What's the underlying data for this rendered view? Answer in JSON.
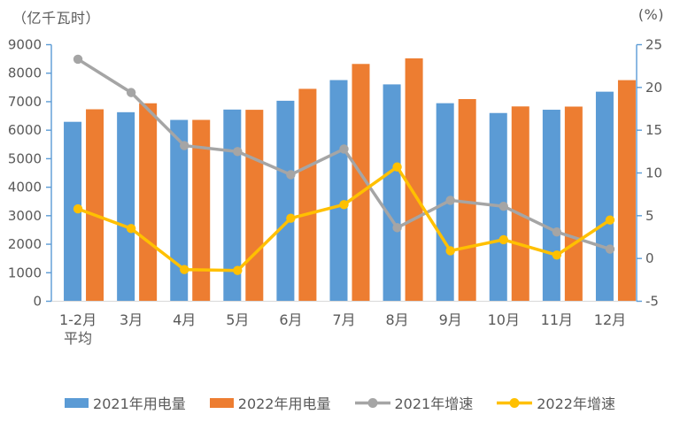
{
  "colors": {
    "axis_line": "#5B9BD5",
    "baseline": "#D9D9D9",
    "label_text": "#595959",
    "background": "#ffffff"
  },
  "chart_data": {
    "type": "bar+line combo",
    "categories": [
      "1-2月\n平均",
      "3月",
      "4月",
      "5月",
      "6月",
      "7月",
      "8月",
      "9月",
      "10月",
      "11月",
      "12月"
    ],
    "series": [
      {
        "name": "2021年用电量",
        "type": "bar",
        "axis": "left",
        "color": "#5B9BD5",
        "values": [
          6294,
          6631,
          6361,
          6724,
          7033,
          7758,
          7607,
          6947,
          6603,
          6718,
          7351
        ]
      },
      {
        "name": "2022年用电量",
        "type": "bar",
        "axis": "left",
        "color": "#ED7D31",
        "values": [
          6734,
          6944,
          6362,
          6716,
          7451,
          8324,
          8520,
          7092,
          6834,
          6828,
          7756
        ]
      },
      {
        "name": "2021年增速",
        "type": "line",
        "axis": "right",
        "color": "#A5A5A5",
        "values": [
          23.3,
          19.4,
          13.2,
          12.5,
          9.8,
          12.8,
          3.6,
          6.8,
          6.1,
          3.1,
          1.1
        ]
      },
      {
        "name": "2022年增速",
        "type": "line",
        "axis": "right",
        "color": "#FFC000",
        "values": [
          5.8,
          3.5,
          -1.3,
          -1.4,
          4.7,
          6.3,
          10.7,
          0.9,
          2.2,
          0.4,
          4.5
        ]
      }
    ],
    "left_axis": {
      "unit": "（亿千瓦时）",
      "min": 0,
      "max": 9000,
      "step": 1000,
      "tick_labels": [
        "0",
        "1000",
        "2000",
        "3000",
        "4000",
        "5000",
        "6000",
        "7000",
        "8000",
        "9000"
      ]
    },
    "right_axis": {
      "unit": "(%)",
      "min": -5,
      "max": 25,
      "step": 5,
      "tick_labels": [
        "-5",
        "0",
        "5",
        "10",
        "15",
        "20",
        "25"
      ]
    },
    "grid": "off",
    "legend_position": "bottom"
  }
}
